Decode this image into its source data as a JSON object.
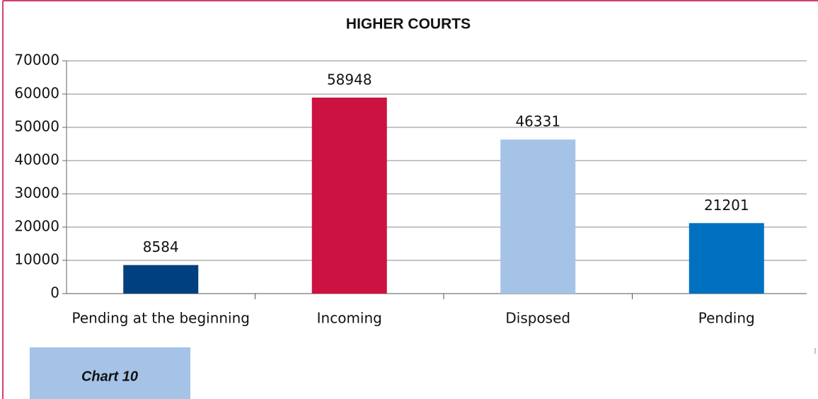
{
  "chart_data": {
    "type": "bar",
    "title": "HIGHER COURTS",
    "categories": [
      "Pending at the beginning",
      "Incoming",
      "Disposed",
      "Pending"
    ],
    "values": [
      8584,
      58948,
      46331,
      21201
    ],
    "colors": [
      "#00407f",
      "#cc1240",
      "#a5c3e7",
      "#0070c0"
    ],
    "ylim": [
      0,
      70000
    ],
    "yticks": [
      0,
      10000,
      20000,
      30000,
      40000,
      50000,
      60000,
      70000
    ],
    "grid": true
  },
  "caption": "Chart 10"
}
